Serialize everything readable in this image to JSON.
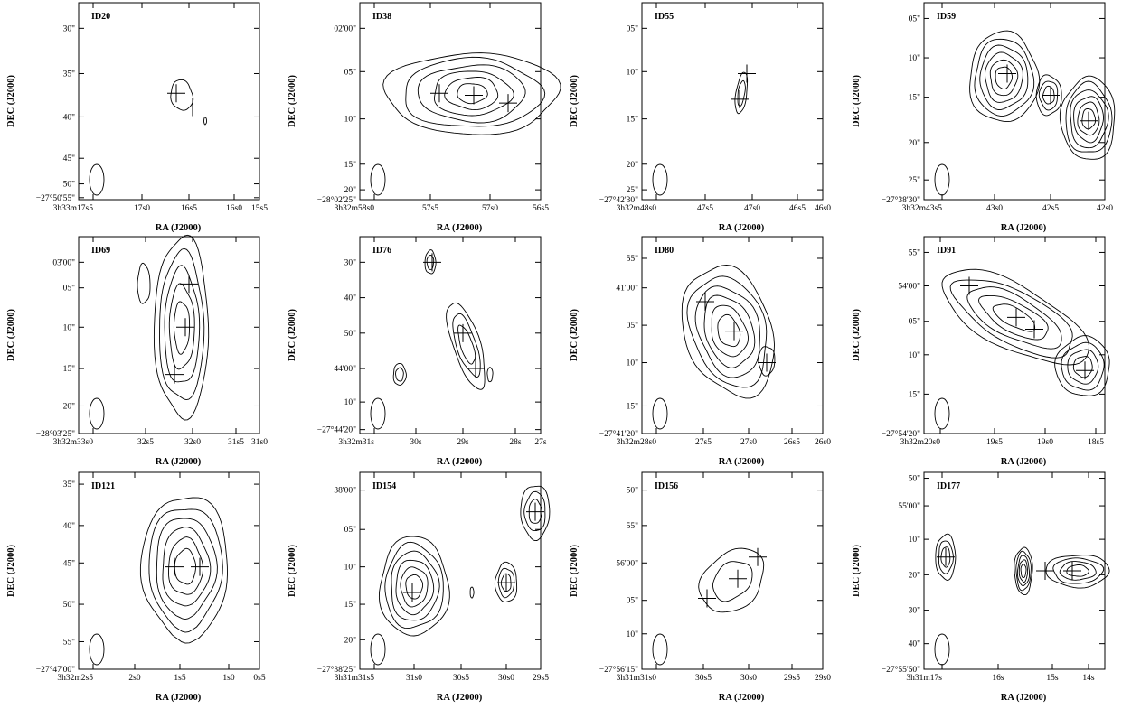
{
  "chart_data": [
    {
      "type": "contour",
      "id_label": "ID20",
      "xlabel": "RA (J2000)",
      "ylabel": "DEC (J2000)",
      "x_ticks": [
        "3h33m17s5",
        "17s0",
        "16s5",
        "16s0",
        "15s5"
      ],
      "y_ticks": [
        "30\"",
        "35\"",
        "40\"",
        "45\"",
        "50\"",
        "−27°50'55\""
      ],
      "sources": [
        {
          "x": 16.59,
          "y": 40.2
        },
        {
          "x": 16.42,
          "y": 41.3
        }
      ]
    },
    {
      "type": "contour",
      "id_label": "ID38",
      "xlabel": "RA (J2000)",
      "ylabel": "DEC (J2000)",
      "x_ticks": [
        "3h32m58s0",
        "57s5",
        "57s0",
        "56s5"
      ],
      "y_ticks": [
        "02'00\"",
        "05\"",
        "10\"",
        "15\"",
        "20\"",
        "−28°02'25\""
      ],
      "sources": [
        {
          "x": 57.55,
          "y": 10.0
        },
        {
          "x": 57.1,
          "y": 10.3
        },
        {
          "x": 56.7,
          "y": 11.6
        }
      ]
    },
    {
      "type": "contour",
      "id_label": "ID55",
      "xlabel": "RA (J2000)",
      "ylabel": "DEC (J2000)",
      "x_ticks": [
        "3h32m48s0",
        "47s5",
        "47s0",
        "46s5",
        "46s0"
      ],
      "y_ticks": [
        "05\"",
        "10\"",
        "15\"",
        "20\"",
        "25\"",
        "−27°42'30\""
      ],
      "sources": [
        {
          "x": 46.91,
          "y": 15.3
        },
        {
          "x": 46.82,
          "y": 12.5
        }
      ]
    },
    {
      "type": "contour",
      "id_label": "ID59",
      "xlabel": "RA (J2000)",
      "ylabel": "DEC (J2000)",
      "x_ticks": [
        "3h32m43s5",
        "43s0",
        "42s5",
        "42s0"
      ],
      "y_ticks": [
        "05\"",
        "10\"",
        "15\"",
        "20\"",
        "25\"",
        "−27°38'30\""
      ],
      "sources": [
        {
          "x": 43.14,
          "y": 13.5
        },
        {
          "x": 42.59,
          "y": 16.2
        },
        {
          "x": 41.97,
          "y": 19.3
        }
      ]
    },
    {
      "type": "contour",
      "id_label": "ID69",
      "xlabel": "RA (J2000)",
      "ylabel": "DEC (J2000)",
      "x_ticks": [
        "3h32m33s0",
        "32s5",
        "32s0",
        "31s5",
        "31s0"
      ],
      "y_ticks": [
        "03'00\"",
        "05\"",
        "10\"",
        "15\"",
        "20\"",
        "−28°03'25\""
      ],
      "sources": [
        {
          "x": 31.93,
          "y": 6.3
        },
        {
          "x": 31.96,
          "y": 10.0
        },
        {
          "x": 32.14,
          "y": 17.5
        }
      ]
    },
    {
      "type": "contour",
      "id_label": "ID76",
      "xlabel": "RA (J2000)",
      "ylabel": "DEC (J2000)",
      "x_ticks": [
        "3h32m31s",
        "30s",
        "29s",
        "28s",
        "27s"
      ],
      "y_ticks": [
        "30\"",
        "40\"",
        "50\"",
        "44'00\"",
        "10\"",
        "−27°44'20\""
      ],
      "sources": [
        {
          "x": 29.5,
          "y": 28.5
        },
        {
          "x": 28.87,
          "y": 45.0
        },
        {
          "x": 28.62,
          "y": 55.0
        }
      ]
    },
    {
      "type": "contour",
      "id_label": "ID80",
      "xlabel": "RA (J2000)",
      "ylabel": "DEC (J2000)",
      "x_ticks": [
        "3h32m28s0",
        "27s5",
        "27s0",
        "26s5",
        "26s0"
      ],
      "y_ticks": [
        "55\"",
        "41'00\"",
        "05\"",
        "10\"",
        "15\"",
        "−27°41'20\""
      ],
      "sources": [
        {
          "x": 27.38,
          "y": 3.0
        },
        {
          "x": 26.95,
          "y": 6.6
        },
        {
          "x": 26.6,
          "y": 10.4
        }
      ]
    },
    {
      "type": "contour",
      "id_label": "ID91",
      "xlabel": "RA (J2000)",
      "ylabel": "DEC (J2000)",
      "x_ticks": [
        "3h32m20s0",
        "19s5",
        "19s0",
        "18s5"
      ],
      "y_ticks": [
        "55\"",
        "54'00\"",
        "05\"",
        "10\"",
        "15\"",
        "−27°54'20\""
      ],
      "sources": [
        {
          "x": 19.85,
          "y": 1.8
        },
        {
          "x": 19.3,
          "y": 5.6
        },
        {
          "x": 19.05,
          "y": 7.0
        },
        {
          "x": 18.5,
          "y": 12.3
        }
      ]
    },
    {
      "type": "contour",
      "id_label": "ID121",
      "xlabel": "RA (J2000)",
      "ylabel": "DEC (J2000)",
      "x_ticks": [
        "3h32m2s5",
        "2s0",
        "1s5",
        "1s0",
        "0s5"
      ],
      "y_ticks": [
        "35\"",
        "40\"",
        "45\"",
        "50\"",
        "55\"",
        "−27°47'00\""
      ],
      "sources": [
        {
          "x": 1.54,
          "y": 47.8
        },
        {
          "x": 1.28,
          "y": 47.8
        }
      ]
    },
    {
      "type": "contour",
      "id_label": "ID154",
      "xlabel": "RA (J2000)",
      "ylabel": "DEC (J2000)",
      "x_ticks": [
        "3h31m31s5",
        "31s0",
        "30s5",
        "30s0",
        "29s5"
      ],
      "y_ticks": [
        "38'00\"",
        "05\"",
        "10\"",
        "15\"",
        "20\"",
        "−27°38'25\""
      ],
      "sources": [
        {
          "x": 31.05,
          "y": 16.0
        },
        {
          "x": 29.99,
          "y": 15.0
        },
        {
          "x": 29.43,
          "y": 6.3
        }
      ]
    },
    {
      "type": "contour",
      "id_label": "ID156",
      "xlabel": "RA (J2000)",
      "ylabel": "DEC (J2000)",
      "x_ticks": [
        "3h31m31s0",
        "30s5",
        "30s0",
        "29s5",
        "29s0"
      ],
      "y_ticks": [
        "50\"",
        "55\"",
        "56'00\"",
        "05\"",
        "10\"",
        "−27°56'15\""
      ],
      "sources": [
        {
          "x": 30.36,
          "y": 4.2
        },
        {
          "x": 30.0,
          "y": 1.5
        },
        {
          "x": 29.8,
          "y": 59.5
        }
      ]
    },
    {
      "type": "contour",
      "id_label": "ID177",
      "xlabel": "RA (J2000)",
      "ylabel": "DEC (J2000)",
      "x_ticks": [
        "3h31m17s",
        "16s",
        "15s",
        "14s"
      ],
      "y_ticks": [
        "50\"",
        "55'00\"",
        "10\"",
        "20\"",
        "30\"",
        "40\"",
        "−27°55'50\""
      ],
      "sources": [
        {
          "x": 16.65,
          "y": 15.0
        },
        {
          "x": 14.6,
          "y": 20.5
        },
        {
          "x": 14.03,
          "y": 20.5
        }
      ]
    }
  ]
}
